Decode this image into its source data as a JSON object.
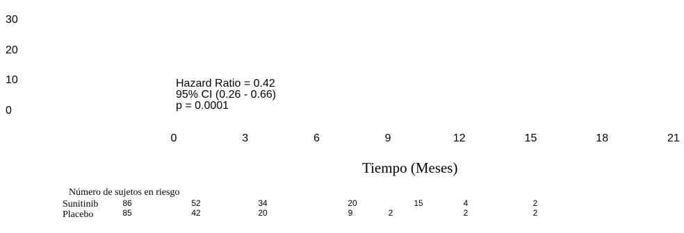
{
  "chart_data": {
    "type": "line",
    "title": "",
    "xlabel": "Tiempo (Meses)",
    "ylabel": "",
    "x_ticks": [
      "0",
      "3",
      "6",
      "9",
      "12",
      "15",
      "18",
      "21"
    ],
    "y_ticks": [
      "30",
      "20",
      "10",
      "0"
    ],
    "xlim": [
      0,
      21
    ],
    "ylim": [
      0,
      30
    ],
    "grid": false,
    "series": [],
    "annotation": [
      "Hazard Ratio = 0.42",
      "95% CI  (0.26  -  0.66)",
      "p  =  0.0001"
    ],
    "risk_table": {
      "title": "Número de sujetos en riesgo",
      "groups": [
        {
          "name": "Sunitinib",
          "values": [
            "86",
            "52",
            "34",
            "20",
            "15",
            "4",
            "2"
          ]
        },
        {
          "name": "Placebo",
          "values": [
            "85",
            "42",
            "20",
            "9",
            "2",
            "2",
            "2"
          ]
        }
      ]
    }
  }
}
